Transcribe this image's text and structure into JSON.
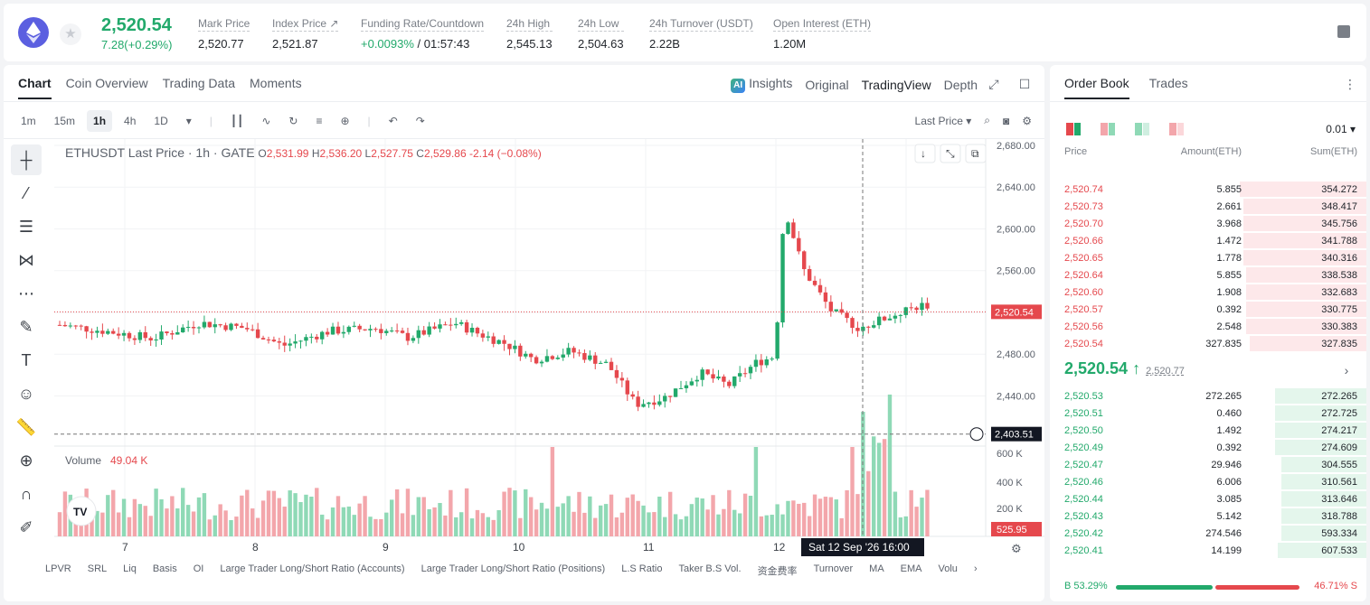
{
  "header": {
    "last_price": "2,520.54",
    "change": "7.28(+0.29%)",
    "stats": [
      {
        "label": "Mark Price",
        "value": "2,520.77"
      },
      {
        "label": "Index Price ↗",
        "value": "2,521.87"
      },
      {
        "label": "Funding Rate/Countdown",
        "value": "+0.0093%",
        "value2": " / 01:57:43"
      },
      {
        "label": "24h High",
        "value": "2,545.13"
      },
      {
        "label": "24h Low",
        "value": "2,504.63"
      },
      {
        "label": "24h Turnover (USDT)",
        "value": "2.22B"
      },
      {
        "label": "Open Interest (ETH)",
        "value": "1.20M"
      }
    ]
  },
  "chart_tabs": [
    "Chart",
    "Coin Overview",
    "Trading Data",
    "Moments"
  ],
  "view_tabs": [
    "Insights",
    "Original",
    "TradingView",
    "Depth"
  ],
  "ai_badge": "AI",
  "timeframes": [
    "1m",
    "15m",
    "1h",
    "4h",
    "1D"
  ],
  "last_price_select": "Last Price",
  "legend": {
    "symbol": "ETHUSDT Last Price · 1h · GATE",
    "o_label": "O",
    "o": "2,531.99",
    "h_label": "H",
    "h": "2,536.20",
    "l_label": "L",
    "l": "2,527.75",
    "c_label": "C",
    "c": "2,529.86",
    "chg": "-2.14 (−0.08%)"
  },
  "volume_label": "Volume",
  "volume_value": "49.04 K",
  "price_axis": [
    "2,680.00",
    "2,640.00",
    "2,600.00",
    "2,560.00",
    "2,520.54",
    "2,480.00",
    "2,440.00",
    "2,403.51"
  ],
  "volume_axis": [
    "600 K",
    "400 K",
    "200 K",
    "525.95"
  ],
  "time_axis": [
    "7",
    "8",
    "9",
    "10",
    "11",
    "12"
  ],
  "crosshair_time": "Sat 12 Sep '26   16:00",
  "tv_logo": "TV",
  "indicators": [
    "LPVR",
    "SRL",
    "Liq",
    "Basis",
    "OI",
    "Large Trader Long/Short Ratio (Accounts)",
    "Large Trader Long/Short Ratio (Positions)",
    "L.S Ratio",
    "Taker B.S Vol.",
    "资金费率",
    "Turnover",
    "MA",
    "EMA",
    "Volu"
  ],
  "orderbook": {
    "tabs": [
      "Order Book",
      "Trades"
    ],
    "precision": "0.01",
    "headers": {
      "price": "Price",
      "amount": "Amount(ETH)",
      "sum": "Sum(ETH)"
    },
    "asks": [
      {
        "price": "2,520.74",
        "amount": "5.855",
        "sum": "354.272",
        "depth": 0.4
      },
      {
        "price": "2,520.73",
        "amount": "2.661",
        "sum": "348.417",
        "depth": 0.39
      },
      {
        "price": "2,520.70",
        "amount": "3.968",
        "sum": "345.756",
        "depth": 0.39
      },
      {
        "price": "2,520.66",
        "amount": "1.472",
        "sum": "341.788",
        "depth": 0.39
      },
      {
        "price": "2,520.65",
        "amount": "1.778",
        "sum": "340.316",
        "depth": 0.39
      },
      {
        "price": "2,520.64",
        "amount": "5.855",
        "sum": "338.538",
        "depth": 0.38
      },
      {
        "price": "2,520.60",
        "amount": "1.908",
        "sum": "332.683",
        "depth": 0.38
      },
      {
        "price": "2,520.57",
        "amount": "0.392",
        "sum": "330.775",
        "depth": 0.38
      },
      {
        "price": "2,520.56",
        "amount": "2.548",
        "sum": "330.383",
        "depth": 0.38
      },
      {
        "price": "2,520.54",
        "amount": "327.835",
        "sum": "327.835",
        "depth": 0.37
      }
    ],
    "mid_price": "2,520.54 ↑",
    "mark_price": "2,520.77",
    "bids": [
      {
        "price": "2,520.53",
        "amount": "272.265",
        "sum": "272.265",
        "depth": 0.29
      },
      {
        "price": "2,520.51",
        "amount": "0.460",
        "sum": "272.725",
        "depth": 0.29
      },
      {
        "price": "2,520.50",
        "amount": "1.492",
        "sum": "274.217",
        "depth": 0.29
      },
      {
        "price": "2,520.49",
        "amount": "0.392",
        "sum": "274.609",
        "depth": 0.29
      },
      {
        "price": "2,520.47",
        "amount": "29.946",
        "sum": "304.555",
        "depth": 0.27
      },
      {
        "price": "2,520.46",
        "amount": "6.006",
        "sum": "310.561",
        "depth": 0.27
      },
      {
        "price": "2,520.44",
        "amount": "3.085",
        "sum": "313.646",
        "depth": 0.27
      },
      {
        "price": "2,520.43",
        "amount": "5.142",
        "sum": "318.788",
        "depth": 0.27
      },
      {
        "price": "2,520.42",
        "amount": "274.546",
        "sum": "593.334",
        "depth": 0.27
      },
      {
        "price": "2,520.41",
        "amount": "14.199",
        "sum": "607.533",
        "depth": 0.28
      }
    ],
    "buy_ratio": "B 53.29%",
    "sell_ratio": "46.71% S",
    "buy_fraction": 0.5329
  },
  "colors": {
    "up": "#22a96b",
    "down": "#e5484d",
    "up_light": "#8fd9b6",
    "down_light": "#f3a6ab"
  }
}
